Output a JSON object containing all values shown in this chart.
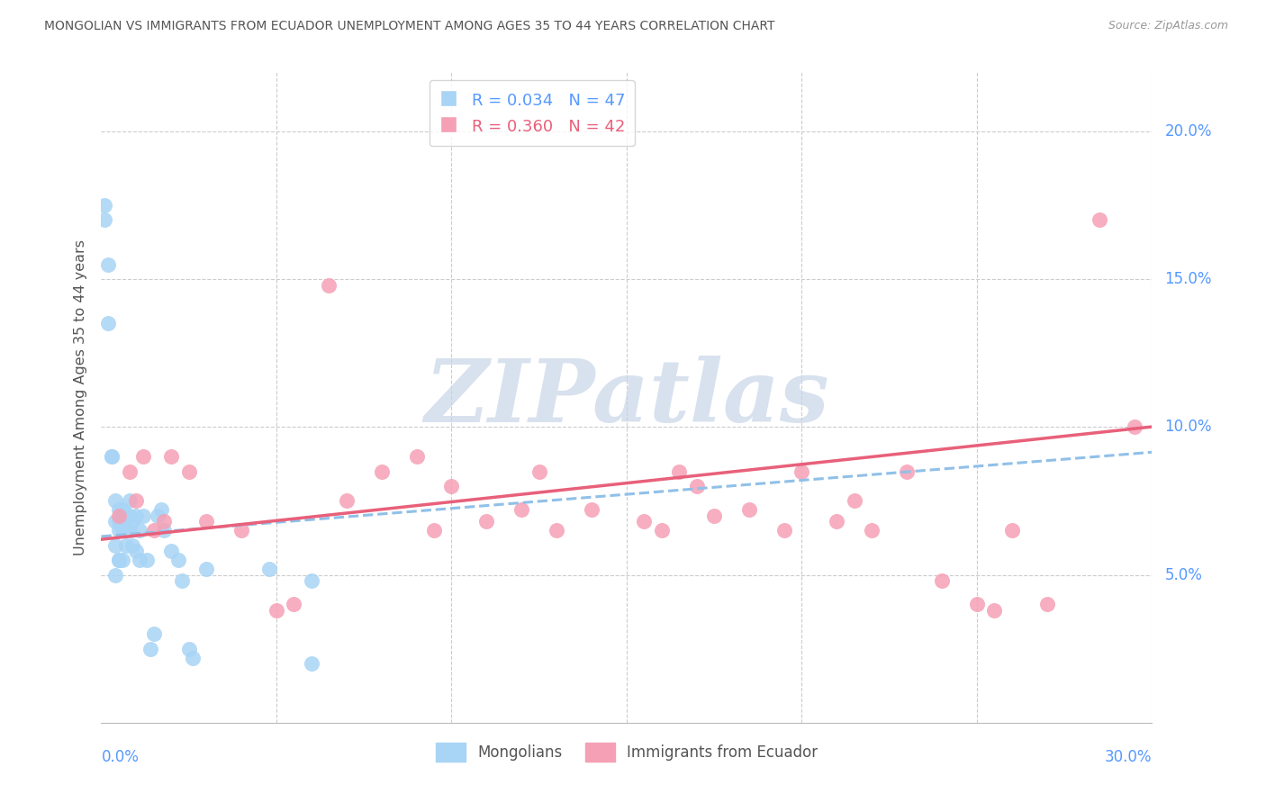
{
  "title": "MONGOLIAN VS IMMIGRANTS FROM ECUADOR UNEMPLOYMENT AMONG AGES 35 TO 44 YEARS CORRELATION CHART",
  "source": "Source: ZipAtlas.com",
  "ylabel": "Unemployment Among Ages 35 to 44 years",
  "R1": 0.034,
  "N1": 47,
  "R2": 0.36,
  "N2": 42,
  "color_mongolian": "#a8d4f5",
  "color_ecuador": "#f5a0b5",
  "color_mongo_line": "#90c0e8",
  "color_ecu_line": "#e8607a",
  "color_title": "#555555",
  "color_axis_labels": "#5599ff",
  "watermark_text": "ZIPatlas",
  "watermark_color": "#c8d5e8",
  "xlim": [
    0.0,
    0.3
  ],
  "ylim": [
    0.0,
    0.22
  ],
  "ytick_vals": [
    0.05,
    0.1,
    0.15,
    0.2
  ],
  "ytick_labels": [
    "5.0%",
    "10.0%",
    "15.0%",
    "20.0%"
  ],
  "xtick_left_label": "0.0%",
  "xtick_right_label": "30.0%",
  "legend_label1": "Mongolians",
  "legend_label2": "Immigrants from Ecuador",
  "mongo_x": [
    0.001,
    0.001,
    0.002,
    0.002,
    0.003,
    0.003,
    0.004,
    0.004,
    0.004,
    0.005,
    0.005,
    0.005,
    0.005,
    0.006,
    0.006,
    0.006,
    0.006,
    0.007,
    0.007,
    0.007,
    0.008,
    0.008,
    0.008,
    0.009,
    0.009,
    0.01,
    0.01,
    0.011,
    0.011,
    0.012,
    0.013,
    0.014,
    0.015,
    0.016,
    0.017,
    0.018,
    0.02,
    0.022,
    0.023,
    0.025,
    0.026,
    0.03,
    0.048,
    0.06,
    0.004,
    0.005,
    0.06
  ],
  "mongo_y": [
    0.175,
    0.17,
    0.155,
    0.135,
    0.09,
    0.09,
    0.075,
    0.068,
    0.06,
    0.072,
    0.068,
    0.065,
    0.055,
    0.072,
    0.068,
    0.065,
    0.055,
    0.07,
    0.065,
    0.06,
    0.075,
    0.07,
    0.065,
    0.068,
    0.06,
    0.07,
    0.058,
    0.065,
    0.055,
    0.07,
    0.055,
    0.025,
    0.03,
    0.07,
    0.072,
    0.065,
    0.058,
    0.055,
    0.048,
    0.025,
    0.022,
    0.052,
    0.052,
    0.048,
    0.05,
    0.055,
    0.02
  ],
  "ecu_x": [
    0.005,
    0.008,
    0.01,
    0.012,
    0.015,
    0.018,
    0.02,
    0.025,
    0.03,
    0.04,
    0.05,
    0.055,
    0.065,
    0.07,
    0.08,
    0.09,
    0.095,
    0.1,
    0.11,
    0.12,
    0.125,
    0.13,
    0.14,
    0.155,
    0.16,
    0.165,
    0.17,
    0.175,
    0.185,
    0.195,
    0.2,
    0.21,
    0.215,
    0.22,
    0.23,
    0.24,
    0.25,
    0.255,
    0.26,
    0.27,
    0.285,
    0.295
  ],
  "ecu_y": [
    0.07,
    0.085,
    0.075,
    0.09,
    0.065,
    0.068,
    0.09,
    0.085,
    0.068,
    0.065,
    0.038,
    0.04,
    0.148,
    0.075,
    0.085,
    0.09,
    0.065,
    0.08,
    0.068,
    0.072,
    0.085,
    0.065,
    0.072,
    0.068,
    0.065,
    0.085,
    0.08,
    0.07,
    0.072,
    0.065,
    0.085,
    0.068,
    0.075,
    0.065,
    0.085,
    0.048,
    0.04,
    0.038,
    0.065,
    0.04,
    0.17,
    0.1
  ]
}
